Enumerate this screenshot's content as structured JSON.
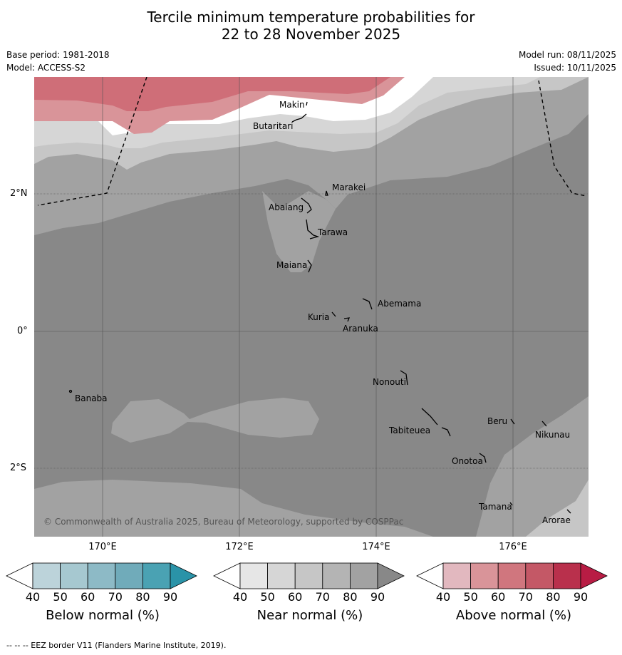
{
  "title": {
    "line1": "Tercile minimum temperature probabilities for",
    "line2": "22 to 28 November 2025"
  },
  "info": {
    "base_period": "Base period: 1981-2018",
    "model": "Model: ACCESS-S2",
    "model_run": "Model run: 08/11/2025",
    "issued": "Issued: 10/11/2025"
  },
  "map": {
    "longitude_labels": [
      "170°E",
      "172°E",
      "174°E",
      "176°E"
    ],
    "latitude_labels": [
      "2°N",
      "0°",
      "2°S"
    ],
    "places": [
      "Makin",
      "Butaritari",
      "Marakei",
      "Abaiang",
      "Tarawa",
      "Maiana",
      "Abemama",
      "Kuria",
      "Aranuka",
      "Nonouti",
      "Banaba",
      "Beru",
      "Nikunau",
      "Tabiteuea",
      "Onotoa",
      "Tamana",
      "Arorae"
    ],
    "copyright": "© Commonwealth of Australia 2025, Bureau of Meteorology, supported by COSPPac"
  },
  "legend": {
    "below": {
      "title": "Below normal (%)",
      "colors": [
        "#ffffff",
        "#bcd3da",
        "#a6c8d0",
        "#8dbac6",
        "#70abba",
        "#4aa2b3",
        "#2a93a8"
      ]
    },
    "near": {
      "title": "Near normal (%)",
      "colors": [
        "#ffffff",
        "#e6e6e6",
        "#d6d6d6",
        "#c6c6c6",
        "#b4b4b4",
        "#a2a2a2",
        "#888888"
      ]
    },
    "above": {
      "title": "Above normal (%)",
      "colors": [
        "#ffffff",
        "#e2b8bf",
        "#d99499",
        "#d0767e",
        "#c45866",
        "#b9304c",
        "#b81c44"
      ]
    },
    "ticks": [
      "40",
      "50",
      "60",
      "70",
      "80",
      "90"
    ]
  },
  "footer": "--  --  -- EEZ border V11 (Flanders Marine Institute, 2019)."
}
